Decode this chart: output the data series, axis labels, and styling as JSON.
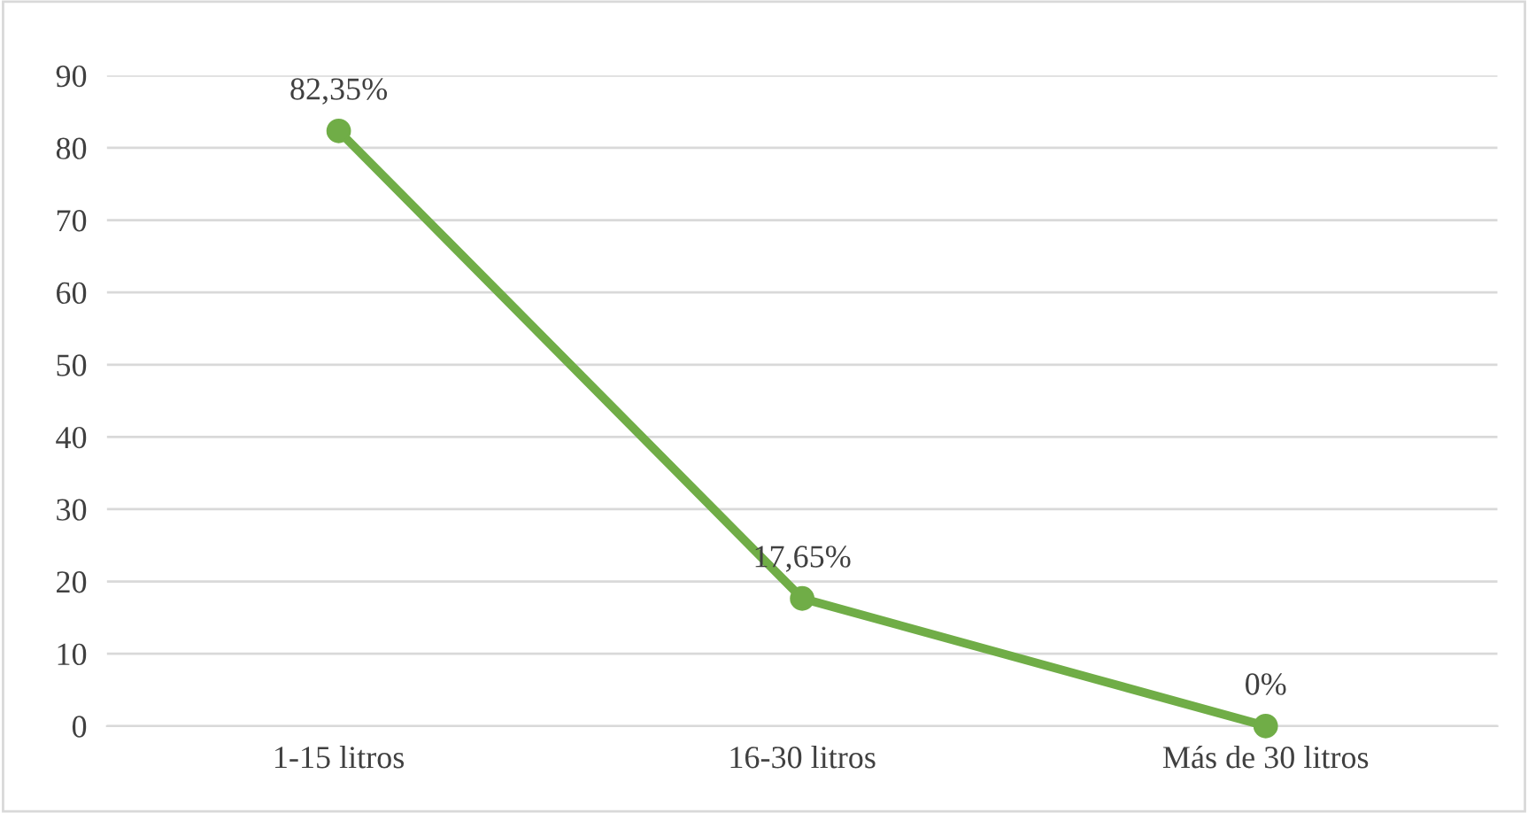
{
  "chart_data": {
    "type": "line",
    "categories": [
      "1-15 litros",
      "16-30 litros",
      "Más de 30 litros"
    ],
    "series": [
      {
        "color": "#70ad47",
        "values": [
          82.35,
          17.65,
          0
        ],
        "value_labels": [
          "82,35%",
          "17,65%",
          "0%"
        ]
      }
    ],
    "ylim": [
      0,
      90
    ],
    "yticks": [
      0,
      10,
      20,
      30,
      40,
      50,
      60,
      70,
      80,
      90
    ],
    "grid": "y",
    "marker": "circle",
    "line_style": "solid",
    "legend": false
  }
}
